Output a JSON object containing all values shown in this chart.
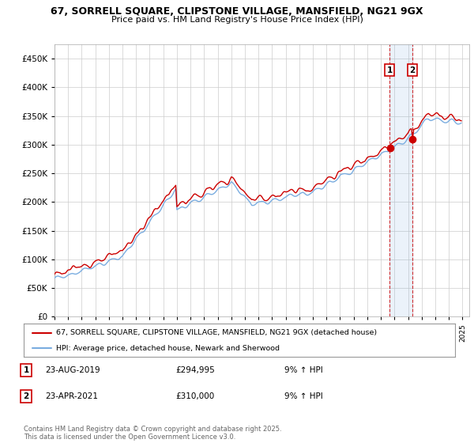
{
  "title1": "67, SORRELL SQUARE, CLIPSTONE VILLAGE, MANSFIELD, NG21 9GX",
  "title2": "Price paid vs. HM Land Registry's House Price Index (HPI)",
  "ylim": [
    0,
    475000
  ],
  "yticks": [
    0,
    50000,
    100000,
    150000,
    200000,
    250000,
    300000,
    350000,
    400000,
    450000
  ],
  "legend_line1": "67, SORRELL SQUARE, CLIPSTONE VILLAGE, MANSFIELD, NG21 9GX (detached house)",
  "legend_line2": "HPI: Average price, detached house, Newark and Sherwood",
  "annotation1_label": "1",
  "annotation1_date": "23-AUG-2019",
  "annotation1_price": "£294,995",
  "annotation1_hpi": "9% ↑ HPI",
  "annotation2_label": "2",
  "annotation2_date": "23-APR-2021",
  "annotation2_price": "£310,000",
  "annotation2_hpi": "9% ↑ HPI",
  "footer": "Contains HM Land Registry data © Crown copyright and database right 2025.\nThis data is licensed under the Open Government Licence v3.0.",
  "color_red": "#cc0000",
  "color_blue": "#7aade0",
  "color_blue_shade": "#d0e4f7",
  "background_color": "#ffffff",
  "grid_color": "#cccccc",
  "sale1_x": 2019.648,
  "sale1_y": 294995,
  "sale2_x": 2021.311,
  "sale2_y": 310000,
  "xlim_start": 1995,
  "xlim_end": 2025.5
}
